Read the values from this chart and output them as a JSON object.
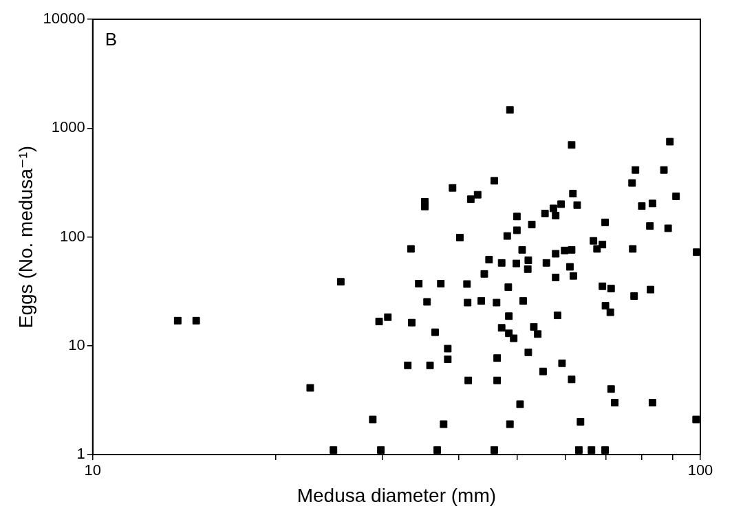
{
  "chart_data": {
    "type": "scatter",
    "xlabel": "Medusa diameter (mm)",
    "ylabel": "Eggs (No. medusa⁻¹)",
    "annotations": [
      "B"
    ],
    "log": "xy",
    "grid": false,
    "legend": false,
    "marker": "square",
    "xlim": [
      10,
      100
    ],
    "ylim": [
      1,
      10000
    ],
    "xticks": [
      10,
      {
        "value": 20,
        "label": null
      },
      {
        "value": 30,
        "label": null
      },
      {
        "value": 40,
        "label": null
      },
      {
        "value": 50,
        "label": null
      },
      {
        "value": 60,
        "label": null
      },
      {
        "value": 70,
        "label": null
      },
      {
        "value": 80,
        "label": null
      },
      {
        "value": 90,
        "label": null
      },
      100
    ],
    "yticks": [
      1,
      10,
      100,
      1000,
      10000
    ],
    "series": [
      {
        "color": "#000000",
        "x": [
          13.8,
          14.8,
          22.8,
          25.6,
          28.9,
          24.9,
          29.8,
          29.6,
          30.6,
          48.6,
          61.4,
          89.1,
          78.2,
          87.1,
          77.2,
          45.8,
          39.1,
          43.0,
          41.9,
          35.2,
          35.2,
          61.7,
          62.7,
          59.0,
          57.3,
          57.8,
          55.5,
          91.2,
          83.4,
          80.1,
          49.9,
          69.7,
          52.8,
          49.9,
          48.1,
          82.6,
          88.5,
          40.2,
          33.4,
          50.9,
          66.7,
          69.0,
          67.6,
          77.4,
          98.6,
          59.8,
          61.4,
          57.8,
          44.9,
          47.1,
          49.8,
          52.1,
          52.0,
          55.8,
          44.1,
          34.4,
          37.4,
          41.3,
          57.8,
          61.0,
          61.8,
          48.3,
          69.0,
          71.3,
          82.8,
          77.8,
          35.5,
          41.4,
          43.6,
          46.2,
          51.1,
          69.8,
          71.1,
          48.4,
          58.2,
          33.5,
          47.1,
          48.4,
          49.3,
          53.2,
          54.0,
          36.6,
          38.4,
          38.4,
          46.3,
          52.1,
          33.0,
          35.9,
          59.2,
          41.5,
          46.3,
          55.1,
          61.4,
          71.3,
          72.3,
          83.4,
          50.5,
          37.8,
          48.6,
          63.5,
          98.4,
          36.9,
          45.8,
          63.1,
          66.2,
          69.7
        ],
        "values": [
          17,
          17,
          4.1,
          38.7,
          2.1,
          1.1,
          1.1,
          16.7,
          18.3,
          1469,
          700,
          750,
          412,
          412,
          313,
          328,
          282,
          244,
          222,
          210,
          190,
          250,
          196,
          200,
          183,
          157,
          164,
          236,
          203,
          192,
          154,
          136,
          130,
          115,
          102,
          126,
          120,
          98.6,
          77.6,
          76.0,
          92,
          85,
          77.6,
          77.6,
          72.4,
          75,
          76,
          70,
          61.8,
          57.7,
          57,
          61,
          50.6,
          57.7,
          45.7,
          37.2,
          37.2,
          36.9,
          42.4,
          53.1,
          43.8,
          34.5,
          35.2,
          33.5,
          32.8,
          28.6,
          25.3,
          24.9,
          25.8,
          24.9,
          25.8,
          23.3,
          20.3,
          18.7,
          19.0,
          16.3,
          14.6,
          13.0,
          11.7,
          14.9,
          12.8,
          13.3,
          9.4,
          7.5,
          7.7,
          8.7,
          6.6,
          6.6,
          6.9,
          4.8,
          4.8,
          5.8,
          4.9,
          4.0,
          3.0,
          3.0,
          2.9,
          1.9,
          1.9,
          2.0,
          2.1,
          1.1,
          1.1,
          1.1,
          1.1,
          1.1
        ]
      }
    ]
  }
}
